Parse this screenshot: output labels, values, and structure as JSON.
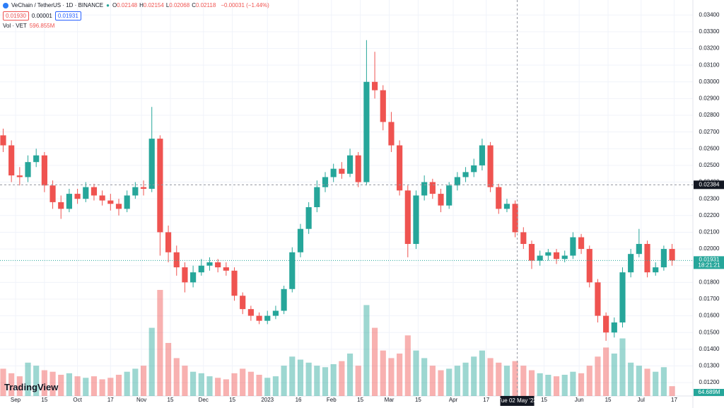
{
  "chart_data": {
    "type": "candlestick",
    "title": "VeChain / TetherUS · 1D · BINANCE",
    "ohlc_header": [
      {
        "label": "O",
        "value": "0.02148"
      },
      {
        "label": "H",
        "value": "0.02154"
      },
      {
        "label": "L",
        "value": "0.02068"
      },
      {
        "label": "C",
        "value": "0.02118"
      }
    ],
    "change": "−0.00031 (−1.44%)",
    "order_boxes": [
      "0.01930",
      "0.00001",
      "0.01931"
    ],
    "volume_label": "Vol · VET",
    "volume_value": "596.855M",
    "logo": "TradingView",
    "x": [
      "2022-08-26",
      "2022-08-30",
      "2022-09-03",
      "2022-09-07",
      "2022-09-11",
      "2022-09-15",
      "2022-09-19",
      "2022-09-23",
      "2022-09-27",
      "2022-10-01",
      "2022-10-05",
      "2022-10-09",
      "2022-10-13",
      "2022-10-17",
      "2022-10-21",
      "2022-10-25",
      "2022-10-29",
      "2022-11-02",
      "2022-11-06",
      "2022-11-10",
      "2022-11-14",
      "2022-11-18",
      "2022-11-22",
      "2022-11-26",
      "2022-11-30",
      "2022-12-04",
      "2022-12-08",
      "2022-12-12",
      "2022-12-16",
      "2022-12-20",
      "2022-12-24",
      "2022-12-28",
      "2023-01-01",
      "2023-01-05",
      "2023-01-09",
      "2023-01-13",
      "2023-01-17",
      "2023-01-21",
      "2023-01-25",
      "2023-01-29",
      "2023-02-02",
      "2023-02-06",
      "2023-02-10",
      "2023-02-14",
      "2023-02-18",
      "2023-02-22",
      "2023-02-26",
      "2023-03-02",
      "2023-03-06",
      "2023-03-10",
      "2023-03-14",
      "2023-03-18",
      "2023-03-22",
      "2023-03-26",
      "2023-03-30",
      "2023-04-03",
      "2023-04-07",
      "2023-04-11",
      "2023-04-15",
      "2023-04-19",
      "2023-04-23",
      "2023-04-27",
      "2023-05-01",
      "2023-05-05",
      "2023-05-09",
      "2023-05-13",
      "2023-05-17",
      "2023-05-21",
      "2023-05-25",
      "2023-05-29",
      "2023-06-02",
      "2023-06-06",
      "2023-06-10",
      "2023-06-14",
      "2023-06-18",
      "2023-06-22",
      "2023-06-26",
      "2023-06-30",
      "2023-07-04",
      "2023-07-08",
      "2023-07-12",
      "2023-07-16"
    ],
    "open": [
      0.0268,
      0.0262,
      0.0244,
      0.0243,
      0.0252,
      0.0256,
      0.0238,
      0.0228,
      0.0224,
      0.0233,
      0.023,
      0.0237,
      0.0232,
      0.0229,
      0.0227,
      0.0224,
      0.0232,
      0.0237,
      0.0236,
      0.0266,
      0.021,
      0.0198,
      0.0189,
      0.018,
      0.0186,
      0.019,
      0.0192,
      0.0189,
      0.0187,
      0.0172,
      0.0164,
      0.016,
      0.0157,
      0.016,
      0.0163,
      0.0176,
      0.0198,
      0.0212,
      0.0225,
      0.0237,
      0.0243,
      0.0248,
      0.0245,
      0.0256,
      0.024,
      0.03,
      0.0295,
      0.0276,
      0.0262,
      0.0235,
      0.0203,
      0.0232,
      0.024,
      0.0233,
      0.0226,
      0.0238,
      0.0243,
      0.0246,
      0.025,
      0.0262,
      0.0237,
      0.0224,
      0.0227,
      0.021,
      0.0203,
      0.0193,
      0.0196,
      0.0198,
      0.0194,
      0.0196,
      0.0207,
      0.02,
      0.018,
      0.016,
      0.015,
      0.0156,
      0.0186,
      0.0197,
      0.0203,
      0.0186,
      0.0189,
      0.02
    ],
    "high": [
      0.0272,
      0.0265,
      0.0249,
      0.0256,
      0.026,
      0.0258,
      0.0241,
      0.0232,
      0.0236,
      0.0236,
      0.024,
      0.0239,
      0.0235,
      0.0233,
      0.023,
      0.0235,
      0.024,
      0.0241,
      0.0285,
      0.0268,
      0.0214,
      0.0202,
      0.0192,
      0.019,
      0.0194,
      0.0195,
      0.0194,
      0.0192,
      0.0189,
      0.0174,
      0.0166,
      0.0162,
      0.0163,
      0.0166,
      0.0178,
      0.0201,
      0.0215,
      0.0228,
      0.0241,
      0.0246,
      0.0251,
      0.0252,
      0.026,
      0.0258,
      0.0325,
      0.0318,
      0.0298,
      0.0282,
      0.0265,
      0.0238,
      0.0235,
      0.0244,
      0.0242,
      0.0236,
      0.024,
      0.0246,
      0.0249,
      0.0254,
      0.0266,
      0.0264,
      0.0239,
      0.023,
      0.0229,
      0.0213,
      0.0205,
      0.0199,
      0.02,
      0.02,
      0.0199,
      0.021,
      0.0209,
      0.0202,
      0.0182,
      0.0162,
      0.0159,
      0.0189,
      0.02,
      0.0212,
      0.0205,
      0.0192,
      0.0202,
      0.0203
    ],
    "low": [
      0.0258,
      0.024,
      0.0238,
      0.024,
      0.0249,
      0.0234,
      0.0224,
      0.0218,
      0.0222,
      0.0227,
      0.0228,
      0.0229,
      0.0226,
      0.0223,
      0.022,
      0.0222,
      0.023,
      0.0232,
      0.0234,
      0.0196,
      0.0192,
      0.0184,
      0.0174,
      0.0177,
      0.0184,
      0.0187,
      0.0186,
      0.0184,
      0.0169,
      0.0161,
      0.0157,
      0.0155,
      0.0155,
      0.0158,
      0.0161,
      0.0174,
      0.0195,
      0.0209,
      0.0222,
      0.0234,
      0.024,
      0.0242,
      0.0243,
      0.0237,
      0.0238,
      0.029,
      0.0271,
      0.0258,
      0.0232,
      0.0195,
      0.02,
      0.0229,
      0.023,
      0.0222,
      0.0224,
      0.0235,
      0.024,
      0.0243,
      0.0247,
      0.0234,
      0.0221,
      0.0222,
      0.0207,
      0.02,
      0.0188,
      0.019,
      0.0193,
      0.0191,
      0.0192,
      0.0194,
      0.0197,
      0.0177,
      0.0156,
      0.0145,
      0.0147,
      0.0153,
      0.0183,
      0.0195,
      0.0183,
      0.0184,
      0.0187,
      0.019
    ],
    "close": [
      0.0262,
      0.0244,
      0.0243,
      0.0252,
      0.0256,
      0.0238,
      0.0228,
      0.0224,
      0.0233,
      0.023,
      0.0237,
      0.0232,
      0.0229,
      0.0227,
      0.0224,
      0.0232,
      0.0237,
      0.0236,
      0.0266,
      0.021,
      0.0198,
      0.0189,
      0.018,
      0.0186,
      0.019,
      0.0192,
      0.0189,
      0.0187,
      0.0172,
      0.0164,
      0.016,
      0.0157,
      0.016,
      0.0163,
      0.0176,
      0.0198,
      0.0212,
      0.0225,
      0.0237,
      0.0243,
      0.0248,
      0.0245,
      0.0256,
      0.024,
      0.03,
      0.0295,
      0.0276,
      0.0262,
      0.0235,
      0.0203,
      0.0232,
      0.024,
      0.0233,
      0.0226,
      0.0238,
      0.0243,
      0.0246,
      0.025,
      0.0262,
      0.0237,
      0.0224,
      0.0227,
      0.021,
      0.0203,
      0.0193,
      0.0196,
      0.0198,
      0.0194,
      0.0196,
      0.0207,
      0.02,
      0.018,
      0.016,
      0.015,
      0.0156,
      0.0186,
      0.0197,
      0.0203,
      0.0186,
      0.0189,
      0.02,
      0.01931
    ],
    "volume": [
      180,
      150,
      130,
      220,
      200,
      170,
      160,
      140,
      150,
      130,
      120,
      130,
      110,
      120,
      140,
      160,
      180,
      200,
      450,
      700,
      350,
      250,
      200,
      160,
      150,
      130,
      120,
      110,
      150,
      180,
      160,
      140,
      120,
      130,
      200,
      260,
      240,
      220,
      200,
      190,
      210,
      230,
      280,
      200,
      600,
      450,
      300,
      250,
      280,
      400,
      300,
      250,
      200,
      170,
      180,
      200,
      220,
      260,
      300,
      250,
      220,
      200,
      230,
      200,
      170,
      150,
      140,
      130,
      140,
      160,
      150,
      200,
      260,
      320,
      280,
      380,
      220,
      200,
      180,
      160,
      190,
      64.689
    ],
    "volume_last_label": "64.689M",
    "up_color": "#26a69a",
    "down_color": "#ef5350",
    "ylim": [
      0.0112,
      0.0349
    ],
    "yticks": [
      {
        "value": 0.012,
        "label": "0.01200"
      },
      {
        "value": 0.013,
        "label": "0.01300"
      },
      {
        "value": 0.014,
        "label": "0.01400"
      },
      {
        "value": 0.015,
        "label": "0.01500"
      },
      {
        "value": 0.016,
        "label": "0.01600"
      },
      {
        "value": 0.017,
        "label": "0.01700"
      },
      {
        "value": 0.018,
        "label": "0.01800"
      },
      {
        "value": 0.019,
        "label": "0.01900"
      },
      {
        "value": 0.02,
        "label": "0.02000"
      },
      {
        "value": 0.021,
        "label": "0.02100"
      },
      {
        "value": 0.022,
        "label": "0.02200"
      },
      {
        "value": 0.023,
        "label": "0.02300"
      },
      {
        "value": 0.024,
        "label": "0.02400"
      },
      {
        "value": 0.025,
        "label": "0.02500"
      },
      {
        "value": 0.026,
        "label": "0.02600"
      },
      {
        "value": 0.027,
        "label": "0.02700"
      },
      {
        "value": 0.028,
        "label": "0.02800"
      },
      {
        "value": 0.029,
        "label": "0.02900"
      },
      {
        "value": 0.03,
        "label": "0.03000"
      },
      {
        "value": 0.031,
        "label": "0.03100"
      },
      {
        "value": 0.032,
        "label": "0.03200"
      },
      {
        "value": 0.033,
        "label": "0.03300"
      },
      {
        "value": 0.034,
        "label": "0.03400"
      }
    ],
    "xticks": [
      {
        "value": "2022-09-01",
        "label": "Sep"
      },
      {
        "value": "2022-09-15",
        "label": "15"
      },
      {
        "value": "2022-10-01",
        "label": "Oct"
      },
      {
        "value": "2022-10-17",
        "label": "17"
      },
      {
        "value": "2022-11-01",
        "label": "Nov"
      },
      {
        "value": "2022-11-15",
        "label": "15"
      },
      {
        "value": "2022-12-01",
        "label": "Dec"
      },
      {
        "value": "2022-12-15",
        "label": "15"
      },
      {
        "value": "2023-01-01",
        "label": "2023"
      },
      {
        "value": "2023-01-16",
        "label": "16"
      },
      {
        "value": "2023-02-01",
        "label": "Feb"
      },
      {
        "value": "2023-02-15",
        "label": "15"
      },
      {
        "value": "2023-03-01",
        "label": "Mar"
      },
      {
        "value": "2023-03-15",
        "label": "15"
      },
      {
        "value": "2023-04-01",
        "label": "Apr"
      },
      {
        "value": "2023-04-17",
        "label": "17"
      },
      {
        "value": "2023-05-15",
        "label": "15"
      },
      {
        "value": "2023-06-01",
        "label": "Jun"
      },
      {
        "value": "2023-06-15",
        "label": "15"
      },
      {
        "value": "2023-07-01",
        "label": "Jul"
      },
      {
        "value": "2023-07-17",
        "label": "17"
      }
    ],
    "crosshair": {
      "x": {
        "value": "2023-05-02",
        "label": "Tue 02 May '23"
      },
      "y": {
        "value": 0.02384,
        "label": "0.02384"
      }
    },
    "last_price": {
      "value": 0.01931,
      "label": "0.01931",
      "countdown": "18:21:21"
    },
    "grid": true
  }
}
